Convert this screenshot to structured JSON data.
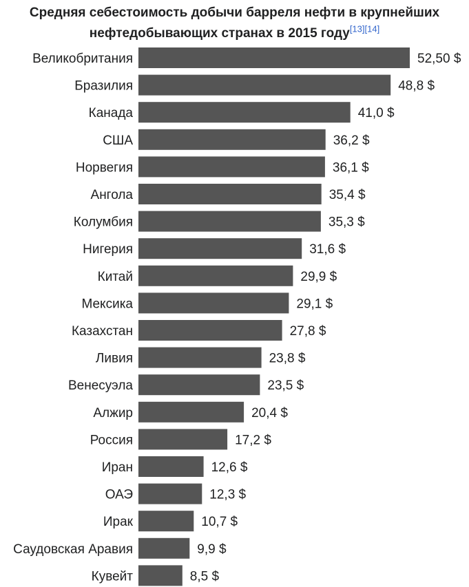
{
  "chart_data": {
    "type": "bar",
    "orientation": "horizontal",
    "title_line1": "Средняя себестоимость добычи барреля нефти в крупнейших",
    "title_line2": "нефтедобывающих странах в 2015 году",
    "title_refs": "[13][14]",
    "categories": [
      "Великобритания",
      "Бразилия",
      "Канада",
      "США",
      "Норвегия",
      "Ангола",
      "Колумбия",
      "Нигерия",
      "Китай",
      "Мексика",
      "Казахстан",
      "Ливия",
      "Венесуэла",
      "Алжир",
      "Россия",
      "Иран",
      "ОАЭ",
      "Ирак",
      "Саудовская Аравия",
      "Кувейт"
    ],
    "values": [
      52.5,
      48.8,
      41.0,
      36.2,
      36.1,
      35.4,
      35.3,
      31.6,
      29.9,
      29.1,
      27.8,
      23.8,
      23.5,
      20.4,
      17.2,
      12.6,
      12.3,
      10.7,
      9.9,
      8.5
    ],
    "value_labels": [
      "52,50 $",
      "48,8 $",
      "41,0 $",
      "36,2 $",
      "36,1 $",
      "35,4 $",
      "35,3 $",
      "31,6 $",
      "29,9 $",
      "29,1 $",
      "27,8 $",
      "23,8 $",
      "23,5 $",
      "20,4 $",
      "17,2 $",
      "12,6 $",
      "12,3 $",
      "10,7 $",
      "9,9 $",
      "8,5 $"
    ],
    "xlabel": "",
    "ylabel": "",
    "xlim": [
      0,
      52.5
    ],
    "grid": false,
    "bar_color": "#555555"
  }
}
